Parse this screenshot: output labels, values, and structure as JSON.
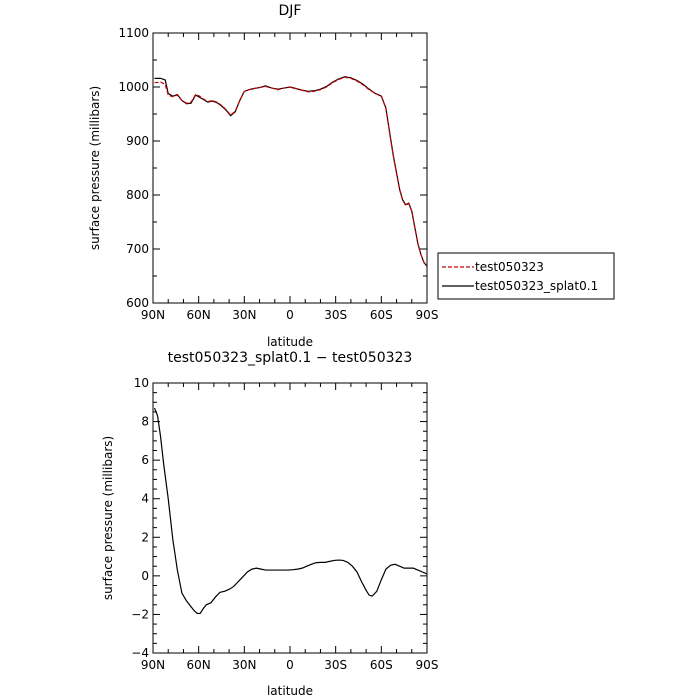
{
  "chart_data": [
    {
      "type": "line",
      "title": "DJF",
      "xlabel": "latitude",
      "ylabel": "surface pressure (millibars)",
      "xlim": [
        90,
        -90
      ],
      "ylim": [
        600,
        1100
      ],
      "x_ticks": [
        {
          "value": 90,
          "label": "90N"
        },
        {
          "value": 60,
          "label": "60N"
        },
        {
          "value": 30,
          "label": "30N"
        },
        {
          "value": 0,
          "label": "0"
        },
        {
          "value": -30,
          "label": "30S"
        },
        {
          "value": -60,
          "label": "60S"
        },
        {
          "value": -90,
          "label": "90S"
        }
      ],
      "y_ticks": [
        {
          "value": 600,
          "label": "600"
        },
        {
          "value": 700,
          "label": "700"
        },
        {
          "value": 800,
          "label": "800"
        },
        {
          "value": 900,
          "label": "900"
        },
        {
          "value": 1000,
          "label": "1000"
        },
        {
          "value": 1100,
          "label": "1100"
        }
      ],
      "legend": {
        "placement": "outside-right"
      },
      "series": [
        {
          "name": "test050323",
          "color": "#cc0000",
          "dash": true,
          "x": [
            89,
            85,
            82,
            80,
            77,
            74,
            71,
            68,
            65,
            62,
            60,
            57,
            54,
            51,
            48,
            45,
            42,
            39,
            36,
            33,
            30,
            27,
            24,
            20,
            16,
            12,
            8,
            4,
            0,
            -4,
            -8,
            -12,
            -16,
            -20,
            -24,
            -28,
            -32,
            -36,
            -40,
            -44,
            -48,
            -52,
            -56,
            -60,
            -63,
            -66,
            -68,
            -70,
            -72,
            -74,
            -76,
            -78,
            -80,
            -82,
            -84,
            -86,
            -88,
            -90
          ],
          "values": [
            1008,
            1009,
            1005,
            985,
            982,
            985,
            975,
            970,
            972,
            986,
            984,
            978,
            973,
            975,
            972,
            966,
            958,
            948,
            955,
            975,
            992,
            995,
            997,
            999,
            1001,
            998,
            995,
            998,
            1000,
            997,
            994,
            991,
            992,
            995,
            1000,
            1008,
            1014,
            1018,
            1016,
            1011,
            1004,
            995,
            988,
            984,
            960,
            905,
            870,
            840,
            810,
            790,
            781,
            784,
            770,
            740,
            710,
            690,
            675,
            668
          ]
        },
        {
          "name": "test050323_splat0.1",
          "color": "#000000",
          "dash": false,
          "x": [
            89,
            85,
            82,
            80,
            77,
            74,
            71,
            68,
            65,
            62,
            60,
            57,
            54,
            51,
            48,
            45,
            42,
            39,
            36,
            33,
            30,
            27,
            24,
            20,
            16,
            12,
            8,
            4,
            0,
            -4,
            -8,
            -12,
            -16,
            -20,
            -24,
            -28,
            -32,
            -36,
            -40,
            -44,
            -48,
            -52,
            -56,
            -60,
            -63,
            -66,
            -68,
            -70,
            -72,
            -74,
            -76,
            -78,
            -80,
            -82,
            -84,
            -86,
            -88,
            -90
          ],
          "values": [
            1016,
            1016,
            1013,
            988,
            983,
            986,
            975,
            969,
            970,
            985,
            982,
            977,
            972,
            974,
            971,
            965,
            957,
            947,
            954,
            975,
            992,
            995,
            997,
            999,
            1002,
            998,
            996,
            998,
            1000,
            997,
            994,
            992,
            993,
            996,
            1001,
            1009,
            1015,
            1019,
            1017,
            1012,
            1005,
            996,
            988,
            983,
            961,
            906,
            871,
            841,
            811,
            791,
            782,
            785,
            770,
            740,
            710,
            690,
            675,
            668
          ]
        }
      ]
    },
    {
      "type": "line",
      "title": "test050323_splat0.1 − test050323",
      "xlabel": "latitude",
      "ylabel": "surface pressure (millibars)",
      "xlim": [
        90,
        -90
      ],
      "ylim": [
        -4,
        10
      ],
      "x_ticks": [
        {
          "value": 90,
          "label": "90N"
        },
        {
          "value": 60,
          "label": "60N"
        },
        {
          "value": 30,
          "label": "30N"
        },
        {
          "value": 0,
          "label": "0"
        },
        {
          "value": -30,
          "label": "30S"
        },
        {
          "value": -60,
          "label": "60S"
        },
        {
          "value": -90,
          "label": "90S"
        }
      ],
      "y_ticks": [
        {
          "value": -4,
          "label": "−4"
        },
        {
          "value": -2,
          "label": "−2"
        },
        {
          "value": 0,
          "label": "0"
        },
        {
          "value": 2,
          "label": "2"
        },
        {
          "value": 4,
          "label": "4"
        },
        {
          "value": 6,
          "label": "6"
        },
        {
          "value": 8,
          "label": "8"
        },
        {
          "value": 10,
          "label": "10"
        }
      ],
      "series": [
        {
          "color": "#000000",
          "dash": false,
          "x": [
            89,
            87,
            85,
            83,
            80,
            77,
            74,
            71,
            68,
            65,
            63,
            61,
            59,
            57,
            55,
            52,
            49,
            46,
            43,
            40,
            37,
            34,
            31,
            28,
            25,
            22,
            19,
            16,
            13,
            10,
            7,
            4,
            1,
            -2,
            -5,
            -8,
            -11,
            -14,
            -17,
            -20,
            -23,
            -26,
            -29,
            -32,
            -35,
            -38,
            -41,
            -44,
            -47,
            -50,
            -52,
            -54,
            -57,
            -60,
            -63,
            -66,
            -69,
            -72,
            -75,
            -78,
            -81,
            -84,
            -87,
            -90
          ],
          "values": [
            8.7,
            8.3,
            7.2,
            5.8,
            4.0,
            1.9,
            0.3,
            -0.9,
            -1.3,
            -1.6,
            -1.8,
            -1.95,
            -1.95,
            -1.7,
            -1.5,
            -1.4,
            -1.1,
            -0.85,
            -0.8,
            -0.7,
            -0.55,
            -0.3,
            -0.05,
            0.2,
            0.35,
            0.4,
            0.35,
            0.3,
            0.3,
            0.3,
            0.3,
            0.3,
            0.3,
            0.32,
            0.35,
            0.4,
            0.5,
            0.6,
            0.68,
            0.7,
            0.7,
            0.75,
            0.8,
            0.82,
            0.8,
            0.7,
            0.5,
            0.2,
            -0.3,
            -0.75,
            -1.0,
            -1.05,
            -0.8,
            -0.2,
            0.35,
            0.55,
            0.6,
            0.5,
            0.4,
            0.4,
            0.4,
            0.3,
            0.2,
            0.1
          ]
        }
      ]
    }
  ]
}
